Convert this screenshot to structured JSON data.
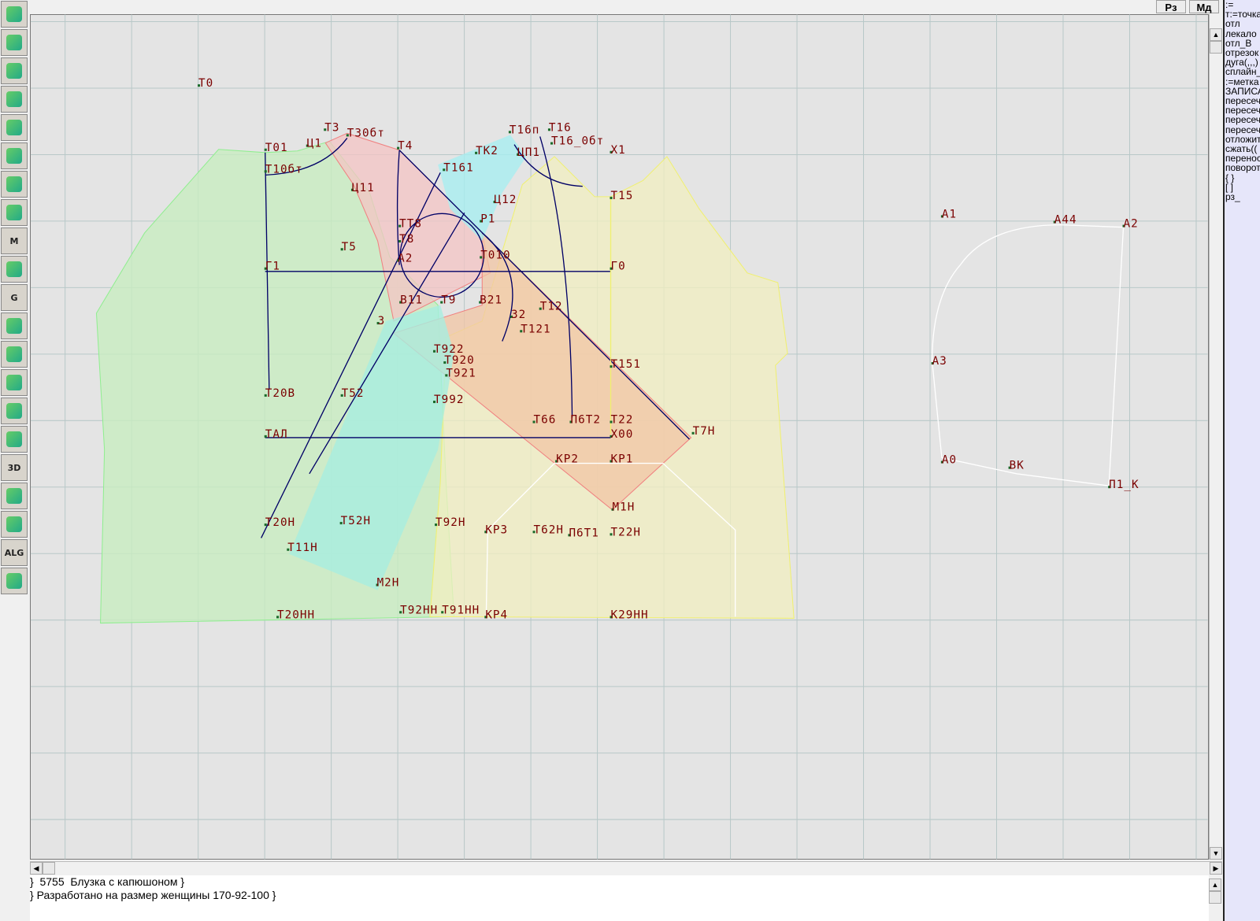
{
  "toolbar": {
    "items": [
      {
        "icon": "refresh-icon"
      },
      {
        "icon": "zoom-in-icon"
      },
      {
        "icon": "zoom-out-icon"
      },
      {
        "icon": "pattern-zoom-icon"
      },
      {
        "icon": "grid-icon"
      },
      {
        "icon": "segment-icon"
      },
      {
        "icon": "map-icon"
      },
      {
        "icon": "pattern-piece-icon"
      },
      {
        "icon": "pattern-m-icon",
        "text": "M"
      },
      {
        "icon": "compass-icon"
      },
      {
        "icon": "pattern-g-icon",
        "text": "G"
      },
      {
        "icon": "ruler-icon"
      },
      {
        "icon": "camera-icon"
      },
      {
        "icon": "spreadsheet-icon"
      },
      {
        "icon": "woman-photo-icon"
      },
      {
        "icon": "jacket-icon"
      },
      {
        "icon": "3d-icon",
        "text": "3D"
      },
      {
        "icon": "document-list-icon"
      },
      {
        "icon": "books-icon"
      },
      {
        "icon": "alg-icon",
        "text": "ALG"
      },
      {
        "icon": "exit-icon"
      }
    ]
  },
  "top_buttons": {
    "rz": "Рз",
    "md": "Мд"
  },
  "command_panel": {
    "items": [
      ":=",
      "т:=точка",
      "отл",
      "лекало",
      "отл_В",
      "отрезок",
      "дуга(,,,)",
      "сплайн_",
      ":=метка",
      "ЗАПИСА",
      "пересеч",
      "пересеч",
      "пересеч",
      "пересеч",
      "отложит",
      "сжать((",
      "перенос",
      "поворот",
      "{ }",
      "[ ]",
      "рз_"
    ]
  },
  "drawing": {
    "colors": {
      "grid": "#b8c8c8",
      "back": "#c8f0c0",
      "front_top": "#f4c8c8",
      "front_low": "#f0c8a8",
      "sleeve": "#f4f0b8",
      "hood": "#a8f0f0",
      "construction": "#000066",
      "label": "#7a0000"
    },
    "labels": [
      "Т0",
      "Т3",
      "Т30бт",
      "Т01",
      "Ц1",
      "Т4",
      "Т10бт",
      "Ц11",
      "Т161",
      "ТК2",
      "Т16п",
      "Т16",
      "Т16_0бт",
      "ЦП1",
      "Х1",
      "Т15",
      "Ц12",
      "Р1",
      "ТТ8",
      "Т8",
      "Т5",
      "А2",
      "Т010",
      "Г1",
      "Г0",
      "В11",
      "Т9",
      "В21",
      "32",
      "3",
      "Т12",
      "Т121",
      "Т922",
      "Т920",
      "Т921",
      "Т151",
      "Т20В",
      "Т52",
      "Т992",
      "Т66",
      "П6Т2",
      "Т22",
      "ТАЛ",
      "Х00",
      "Т7Н",
      "КР2",
      "КР1",
      "М1Н",
      "Т20Н",
      "Т52Н",
      "Т92Н",
      "КР3",
      "Т62Н",
      "П6Т1",
      "Т22Н",
      "Т11Н",
      "М2Н",
      "Т20НН",
      "Т92НН",
      "Т91НН",
      "КР4",
      "К29НН",
      "А1",
      "А44",
      "А2",
      "А3",
      "А0",
      "ВК",
      "П1_К"
    ]
  },
  "notes": {
    "line1": "}  5755  Блузка с капюшоном }",
    "line2": "} Разработано на размер женщины 170-92-100 }"
  }
}
